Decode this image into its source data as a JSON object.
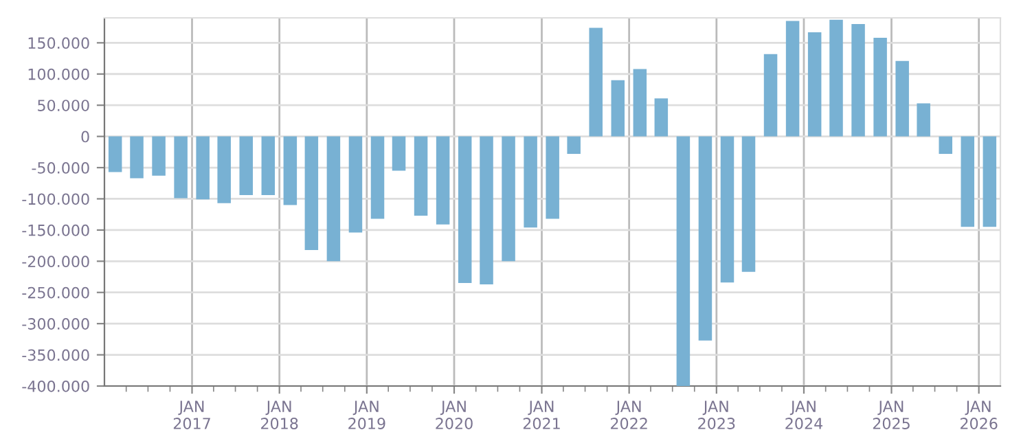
{
  "chart_data": {
    "type": "bar",
    "x": [
      "2016-02-15",
      "2016-05-15",
      "2016-08-15",
      "2016-11-15",
      "2017-02-15",
      "2017-05-15",
      "2017-08-15",
      "2017-11-15",
      "2018-02-15",
      "2018-05-15",
      "2018-08-15",
      "2018-11-15",
      "2019-02-15",
      "2019-05-15",
      "2019-08-15",
      "2019-11-15",
      "2020-02-15",
      "2020-05-15",
      "2020-08-15",
      "2020-11-15",
      "2021-02-15",
      "2021-05-15",
      "2021-08-15",
      "2021-11-15",
      "2022-02-15",
      "2022-05-15",
      "2022-08-15",
      "2022-11-15",
      "2023-02-15",
      "2023-05-15",
      "2023-08-15",
      "2023-11-15",
      "2024-02-15",
      "2024-05-15",
      "2024-08-15",
      "2024-11-15",
      "2025-02-15",
      "2025-05-15",
      "2025-08-15",
      "2025-11-15",
      "2026-02-15"
    ],
    "values": [
      -57000,
      -67000,
      -63000,
      -99000,
      -101000,
      -107000,
      -94000,
      -94000,
      -110000,
      -182000,
      -200000,
      -154000,
      -132000,
      -55000,
      -127000,
      -141000,
      -235000,
      -237000,
      -200000,
      -146000,
      -132000,
      -28000,
      174000,
      90000,
      108000,
      61000,
      -400000,
      -327000,
      -234000,
      -217000,
      132000,
      185000,
      167000,
      187000,
      180000,
      158000,
      121000,
      53000,
      -28000,
      -145000,
      -145000
    ],
    "color": "#78b1d3",
    "ylim": [
      -400000,
      190000
    ],
    "yticks": [
      {
        "value": -400000,
        "label": "-400.000"
      },
      {
        "value": -350000,
        "label": "-350.000"
      },
      {
        "value": -300000,
        "label": "-300.000"
      },
      {
        "value": -250000,
        "label": "-250.000"
      },
      {
        "value": -200000,
        "label": "-200.000"
      },
      {
        "value": -150000,
        "label": "-150.000"
      },
      {
        "value": -100000,
        "label": "-100.000"
      },
      {
        "value": -50000,
        "label": "-50.000"
      },
      0,
      {
        "value": 50000,
        "label": "50.000"
      },
      {
        "value": 100000,
        "label": "100.000"
      },
      {
        "value": 150000,
        "label": "150.000"
      }
    ],
    "xlim": [
      "2016-01-01",
      "2026-04-01"
    ],
    "xticks": [
      {
        "value": "2016-04-01",
        "label": null
      },
      {
        "value": "2016-07-01",
        "label": null
      },
      {
        "value": "2016-10-01",
        "label": null
      },
      {
        "value": "2017-01-01",
        "label": "JAN\n2017"
      },
      {
        "value": "2017-04-01",
        "label": null
      },
      {
        "value": "2017-07-01",
        "label": null
      },
      {
        "value": "2017-10-01",
        "label": null
      },
      {
        "value": "2018-01-01",
        "label": "JAN\n2018"
      },
      {
        "value": "2018-04-01",
        "label": null
      },
      {
        "value": "2018-07-01",
        "label": null
      },
      {
        "value": "2018-10-01",
        "label": null
      },
      {
        "value": "2019-01-01",
        "label": "JAN\n2019"
      },
      {
        "value": "2019-04-01",
        "label": null
      },
      {
        "value": "2019-07-01",
        "label": null
      },
      {
        "value": "2019-10-01",
        "label": null
      },
      {
        "value": "2020-01-01",
        "label": "JAN\n2020"
      },
      {
        "value": "2020-04-01",
        "label": null
      },
      {
        "value": "2020-07-01",
        "label": null
      },
      {
        "value": "2020-10-01",
        "label": null
      },
      {
        "value": "2021-01-01",
        "label": "JAN\n2021"
      },
      {
        "value": "2021-04-01",
        "label": null
      },
      {
        "value": "2021-07-01",
        "label": null
      },
      {
        "value": "2021-10-01",
        "label": null
      },
      {
        "value": "2022-01-01",
        "label": "JAN\n2022"
      },
      {
        "value": "2022-04-01",
        "label": null
      },
      {
        "value": "2022-07-01",
        "label": null
      },
      {
        "value": "2022-10-01",
        "label": null
      },
      {
        "value": "2023-01-01",
        "label": "JAN\n2023"
      },
      {
        "value": "2023-04-01",
        "label": null
      },
      {
        "value": "2023-07-01",
        "label": null
      },
      {
        "value": "2023-10-01",
        "label": null
      },
      {
        "value": "2024-01-01",
        "label": "JAN\n2024"
      },
      {
        "value": "2024-04-01",
        "label": null
      },
      {
        "value": "2024-07-01",
        "label": null
      },
      {
        "value": "2024-10-01",
        "label": null
      },
      {
        "value": "2025-01-01",
        "label": "JAN\n2025"
      },
      {
        "value": "2025-04-01",
        "label": null
      },
      {
        "value": "2025-07-01",
        "label": null
      },
      {
        "value": "2025-10-01",
        "label": null
      },
      {
        "value": "2026-01-01",
        "label": "JAN\n2026"
      }
    ],
    "grid": true
  }
}
